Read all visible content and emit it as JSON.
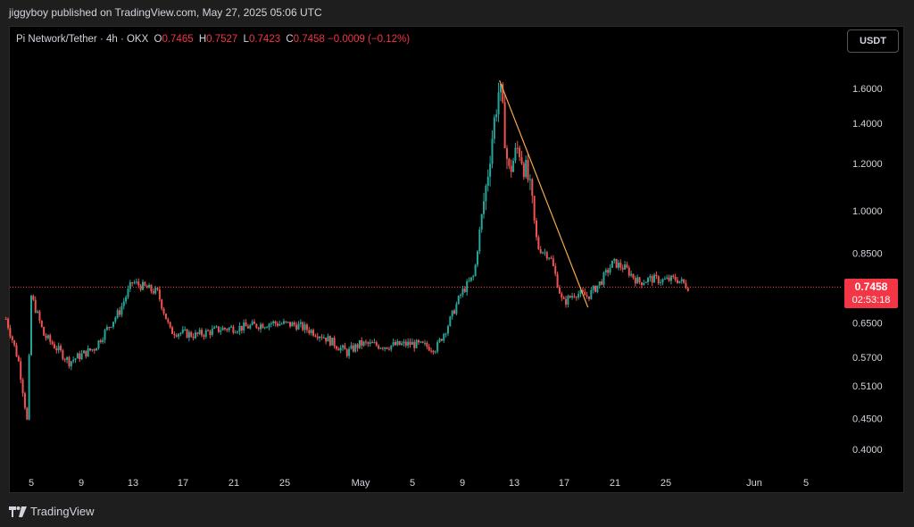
{
  "header": {
    "text": "jiggyboy published on TradingView.com, May 27, 2025 05:06 UTC"
  },
  "legend": {
    "symbol": "Pi Network/Tether · 4h · OKX",
    "o_label": "O",
    "o_value": "0.7465",
    "h_label": "H",
    "h_value": "0.7527",
    "l_label": "L",
    "l_value": "0.7423",
    "c_label": "C",
    "c_value": "0.7458",
    "change": "−0.0009 (−0.12%)"
  },
  "currency_button": "USDT",
  "price_tag": {
    "price": "0.7458",
    "countdown": "02:53:18"
  },
  "footer": {
    "brand": "TradingView"
  },
  "colors": {
    "up": "#26a69a",
    "down": "#ef5350",
    "trendline": "#f7a74a",
    "price_line": "#f23645"
  },
  "chart_data": {
    "type": "candlestick",
    "interval": "4h",
    "y_scale": "log",
    "y_ticks": [
      "1.6000",
      "1.4000",
      "1.2000",
      "1.0000",
      "0.8500",
      "0.6500",
      "0.5700",
      "0.5100",
      "0.4500",
      "0.4000"
    ],
    "x_ticks": [
      "5",
      "9",
      "13",
      "17",
      "21",
      "25",
      "May",
      "5",
      "9",
      "13",
      "17",
      "21",
      "25",
      "Jun",
      "5"
    ],
    "last_price": 0.7458,
    "trendline": {
      "from": {
        "date": "May 12",
        "price": 1.65
      },
      "to": {
        "date": "May 19",
        "price": 0.69
      }
    },
    "close_path": [
      [
        "Apr 3",
        0.66
      ],
      [
        "Apr 4",
        0.56
      ],
      [
        "Apr 4.7",
        0.44
      ],
      [
        "Apr 5",
        0.72
      ],
      [
        "Apr 6",
        0.62
      ],
      [
        "Apr 8",
        0.56
      ],
      [
        "Apr 10",
        0.59
      ],
      [
        "Apr 12",
        0.68
      ],
      [
        "Apr 13",
        0.76
      ],
      [
        "Apr 15",
        0.73
      ],
      [
        "Apr 16",
        0.63
      ],
      [
        "Apr 18",
        0.62
      ],
      [
        "Apr 20",
        0.635
      ],
      [
        "Apr 22",
        0.64
      ],
      [
        "Apr 24",
        0.65
      ],
      [
        "Apr 26",
        0.645
      ],
      [
        "Apr 28",
        0.62
      ],
      [
        "Apr 30",
        0.58
      ],
      [
        "May 1",
        0.6
      ],
      [
        "May 3",
        0.595
      ],
      [
        "May 5",
        0.6
      ],
      [
        "May 7",
        0.59
      ],
      [
        "May 8",
        0.65
      ],
      [
        "May 9",
        0.73
      ],
      [
        "May 10",
        0.78
      ],
      [
        "May 11",
        1.12
      ],
      [
        "May 12",
        1.62
      ],
      [
        "May 12.7",
        1.15
      ],
      [
        "May 13.5",
        1.28
      ],
      [
        "May 14.3",
        1.12
      ],
      [
        "May 15",
        0.87
      ],
      [
        "May 16",
        0.84
      ],
      [
        "May 17",
        0.7
      ],
      [
        "May 18",
        0.73
      ],
      [
        "May 19",
        0.72
      ],
      [
        "May 20",
        0.76
      ],
      [
        "May 21",
        0.82
      ],
      [
        "May 22",
        0.8
      ],
      [
        "May 23",
        0.76
      ],
      [
        "May 24",
        0.77
      ],
      [
        "May 25",
        0.765
      ],
      [
        "May 26",
        0.77
      ],
      [
        "May 27",
        0.7458
      ]
    ]
  }
}
